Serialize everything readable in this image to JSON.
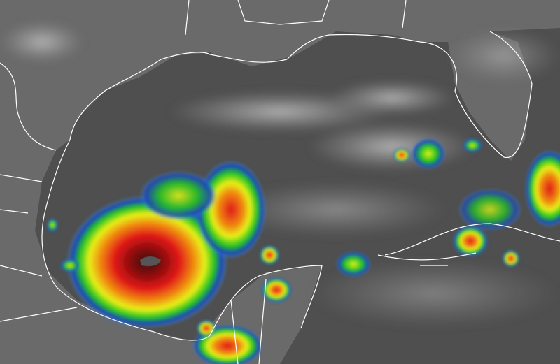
{
  "image": {
    "kind": "infrared satellite imagery",
    "region": "Gulf of Mexico",
    "colors": {
      "ocean_background": "#4f4f4f",
      "land_background": "#6a6a6a",
      "high_clouds": "#c8c8c8",
      "coastline": "#ffffff",
      "cold_tops_scale": [
        "#3fa9f5",
        "#1e3fbf",
        "#22c322",
        "#e8f018",
        "#f08a10",
        "#e01818",
        "#7a0c0c",
        "#2a2a2a"
      ]
    },
    "features": [
      {
        "name": "hurricane",
        "eye": true
      },
      {
        "name": "convection-east-of-hurricane"
      },
      {
        "name": "yucatan-storms"
      },
      {
        "name": "cuba-storms"
      },
      {
        "name": "bahamas-storms"
      },
      {
        "name": "florida-storms"
      }
    ]
  }
}
